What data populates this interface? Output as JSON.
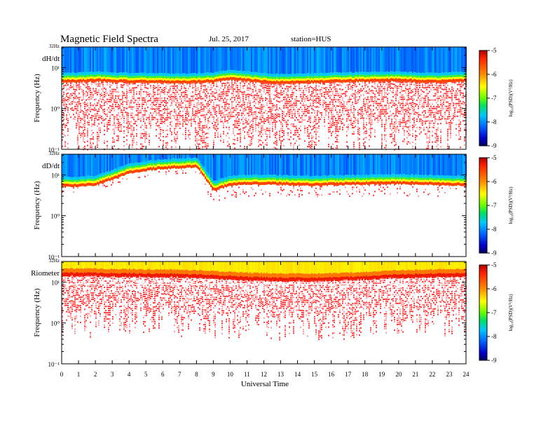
{
  "header": {
    "title": "Magnetic  Field  Spectra",
    "date": "Jul.  25,  2017",
    "station": "station=HUS"
  },
  "x_axis": {
    "label": "Universal Time",
    "ticks": [
      "0",
      "1",
      "2",
      "3",
      "4",
      "5",
      "6",
      "7",
      "8",
      "9",
      "10",
      "11",
      "12",
      "13",
      "14",
      "15",
      "16",
      "17",
      "18",
      "19",
      "20",
      "21",
      "22",
      "23",
      "24"
    ]
  },
  "colorbar": {
    "label": "log₁₀(PSD)(V²/Hz)",
    "ticks": [
      "-5",
      "-6",
      "-7",
      "-8",
      "-9"
    ],
    "colors": [
      "#cc0000",
      "#ff2a00",
      "#ff8c00",
      "#ffff00",
      "#7dff00",
      "#00e060",
      "#00c8ff",
      "#0064ff",
      "#0000cc",
      "#000080"
    ]
  },
  "chart_data": [
    {
      "type": "heatmap",
      "panel_label": "dH/dt",
      "ylabel": "Frequency  (Hz)",
      "top_label": "32Hz",
      "yticks": [
        "10¹",
        "10⁰",
        "10⁻¹"
      ],
      "y_log_range": [
        -1,
        1.505
      ],
      "x_range": [
        0,
        24
      ],
      "clim": [
        -9,
        -5
      ],
      "band_upper_log_hz": [
        0.75,
        0.76,
        0.78,
        0.76,
        0.75,
        0.74,
        0.74,
        0.73,
        0.74,
        0.76,
        0.82,
        0.78,
        0.74,
        0.72,
        0.73,
        0.74,
        0.75,
        0.76,
        0.77,
        0.78,
        0.78,
        0.76,
        0.75,
        0.76,
        0.78
      ]
    },
    {
      "type": "heatmap",
      "panel_label": "dD/dt",
      "ylabel": "Frequency  (Hz)",
      "top_label": "32Hz",
      "yticks": [
        "10¹",
        "10⁰",
        "10⁻¹"
      ],
      "y_log_range": [
        -1,
        1.505
      ],
      "x_range": [
        0,
        24
      ],
      "clim": [
        -9,
        -5
      ],
      "band_upper_log_hz": [
        0.82,
        0.83,
        0.86,
        1.0,
        1.15,
        1.22,
        1.26,
        1.28,
        1.3,
        0.72,
        0.86,
        0.88,
        0.88,
        0.87,
        0.86,
        0.85,
        0.86,
        0.87,
        0.88,
        0.89,
        0.89,
        0.88,
        0.87,
        0.86,
        0.85
      ]
    },
    {
      "type": "heatmap",
      "panel_label": "Riometer",
      "ylabel": "Frequency  (Hz)",
      "top_label": "32Hz",
      "yticks": [
        "10¹",
        "10⁰",
        "10⁻¹"
      ],
      "y_log_range": [
        -1,
        1.505
      ],
      "x_range": [
        0,
        24
      ],
      "clim": [
        -9,
        -5
      ],
      "band_upper_log_hz": [
        1.28,
        1.28,
        1.28,
        1.27,
        1.27,
        1.26,
        1.26,
        1.25,
        1.24,
        1.22,
        1.2,
        1.18,
        1.17,
        1.16,
        1.16,
        1.16,
        1.17,
        1.18,
        1.2,
        1.22,
        1.24,
        1.25,
        1.26,
        1.27,
        1.28
      ]
    }
  ]
}
